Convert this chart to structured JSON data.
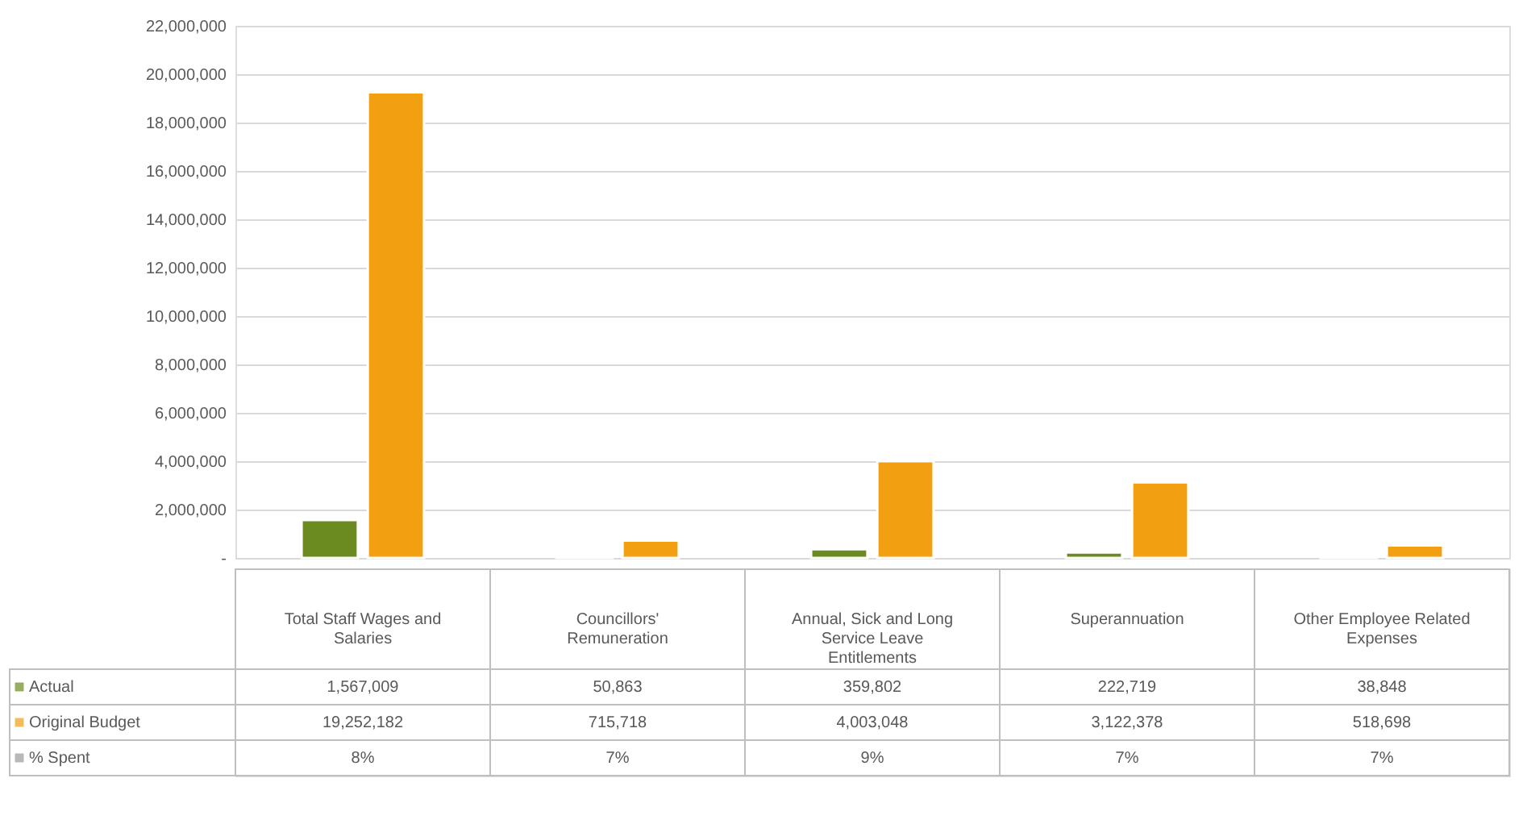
{
  "chart_data": {
    "type": "bar",
    "categories": [
      "Total Staff Wages and Salaries",
      "Councillors' Remuneration",
      "Annual, Sick and Long Service Leave Entitlements",
      "Superannuation",
      "Other Employee Related Expenses"
    ],
    "series": [
      {
        "name": "Actual",
        "color": "#6b8a1f",
        "values": [
          1567009,
          50863,
          359802,
          222719,
          38848
        ],
        "value_labels": [
          "1,567,009",
          "50,863",
          "359,802",
          "222,719",
          "38,848"
        ]
      },
      {
        "name": "Original Budget",
        "color": "#f29f12",
        "values": [
          19252182,
          715718,
          4003048,
          3122378,
          518698
        ],
        "value_labels": [
          "19,252,182",
          "715,718",
          "4,003,048",
          "3,122,378",
          "518,698"
        ]
      },
      {
        "name": "% Spent",
        "type": "other",
        "color": "#9a9a9a",
        "values": [
          null,
          null,
          null,
          null,
          null
        ],
        "value_labels": [
          "8%",
          "7%",
          "9%",
          "7%",
          "7%"
        ]
      }
    ],
    "ylim": [
      0,
      22000000
    ],
    "yticks": [
      {
        "value": 0,
        "label": "-"
      },
      {
        "value": 2000000,
        "label": "2,000,000"
      },
      {
        "value": 4000000,
        "label": "4,000,000"
      },
      {
        "value": 6000000,
        "label": "6,000,000"
      },
      {
        "value": 8000000,
        "label": "8,000,000"
      },
      {
        "value": 10000000,
        "label": "10,000,000"
      },
      {
        "value": 12000000,
        "label": "12,000,000"
      },
      {
        "value": 14000000,
        "label": "14,000,000"
      },
      {
        "value": 16000000,
        "label": "16,000,000"
      },
      {
        "value": 18000000,
        "label": "18,000,000"
      },
      {
        "value": 20000000,
        "label": "20,000,000"
      },
      {
        "value": 22000000,
        "label": "22,000,000"
      }
    ],
    "grid": "y",
    "legend": "bottom"
  }
}
